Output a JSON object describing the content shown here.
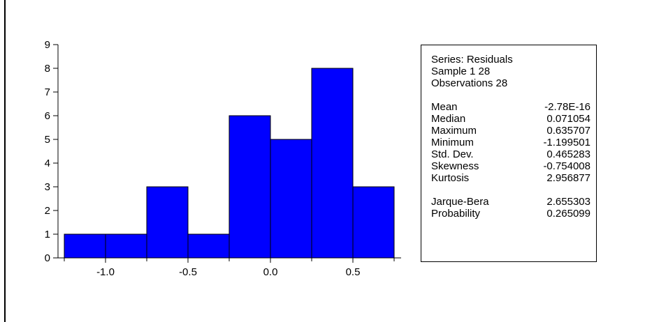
{
  "chart_data": {
    "type": "bar",
    "bins": [
      {
        "from": -1.25,
        "to": -1.0,
        "count": 1
      },
      {
        "from": -1.0,
        "to": -0.75,
        "count": 1
      },
      {
        "from": -0.75,
        "to": -0.5,
        "count": 3
      },
      {
        "from": -0.5,
        "to": -0.25,
        "count": 1
      },
      {
        "from": -0.25,
        "to": 0.0,
        "count": 6
      },
      {
        "from": 0.0,
        "to": 0.25,
        "count": 5
      },
      {
        "from": 0.25,
        "to": 0.5,
        "count": 8
      },
      {
        "from": 0.5,
        "to": 0.75,
        "count": 3
      }
    ],
    "xlim": [
      -1.25,
      0.75
    ],
    "ylim": [
      0,
      9
    ],
    "xticks": [
      -1.0,
      -0.5,
      0.0,
      0.5
    ],
    "xtick_labels": [
      "-1.0",
      "-0.5",
      "0.0",
      "0.5"
    ],
    "yticks": [
      0,
      1,
      2,
      3,
      4,
      5,
      6,
      7,
      8,
      9
    ],
    "ytick_labels": [
      "0",
      "1",
      "2",
      "3",
      "4",
      "5",
      "6",
      "7",
      "8",
      "9"
    ],
    "bar_color": "#0000FF",
    "title": "",
    "xlabel": "",
    "ylabel": ""
  },
  "stats": {
    "header_lines": [
      "Series: Residuals",
      "Sample 1 28",
      "Observations 28"
    ],
    "rows": [
      {
        "label": "Mean",
        "value": "-2.78E-16"
      },
      {
        "label": "Median",
        "value": "0.071054"
      },
      {
        "label": "Maximum",
        "value": "0.635707"
      },
      {
        "label": "Minimum",
        "value": "-1.199501"
      },
      {
        "label": "Std. Dev.",
        "value": "0.465283"
      },
      {
        "label": "Skewness",
        "value": "-0.754008"
      },
      {
        "label": "Kurtosis",
        "value": "2.956877"
      }
    ],
    "tests": [
      {
        "label": "Jarque-Bera",
        "value": "2.655303"
      },
      {
        "label": "Probability",
        "value": "0.265099"
      }
    ]
  }
}
